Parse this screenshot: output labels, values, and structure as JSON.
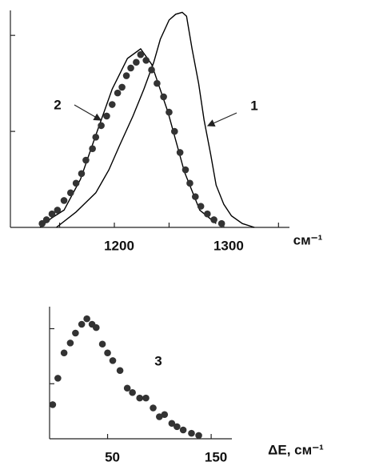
{
  "chart_data": [
    {
      "type": "line",
      "annotations": [
        "1",
        "2"
      ],
      "xlabel": "см⁻¹",
      "xlim": [
        1105,
        1360
      ],
      "xticks": [
        1150,
        1200,
        1250,
        1300,
        1350
      ],
      "xtick_labels": [
        null,
        "1200",
        null,
        "1300",
        null
      ],
      "ylim": [
        0,
        1.13
      ],
      "yticks": [
        0.5,
        1
      ],
      "series": [
        {
          "color": "#000000",
          "marker": "none",
          "x": [
            1147,
            1165,
            1183,
            1195,
            1205,
            1217,
            1227,
            1236,
            1242,
            1250,
            1256,
            1262,
            1266,
            1271,
            1277,
            1282,
            1288,
            1293,
            1300,
            1307,
            1317,
            1328
          ],
          "values": [
            0,
            0.08,
            0.18,
            0.3,
            0.43,
            0.58,
            0.72,
            0.86,
            0.98,
            1.08,
            1.11,
            1.12,
            1.1,
            0.93,
            0.75,
            0.56,
            0.38,
            0.22,
            0.12,
            0.06,
            0.02,
            0
          ]
        },
        {
          "color": "#000000",
          "marker": "none",
          "x": [
            1132,
            1143,
            1154,
            1169,
            1183,
            1198,
            1212,
            1224,
            1234,
            1249,
            1264,
            1278,
            1293
          ],
          "values": [
            0,
            0.05,
            0.09,
            0.25,
            0.48,
            0.72,
            0.88,
            0.93,
            0.85,
            0.6,
            0.29,
            0.09,
            0.02
          ]
        },
        {
          "color": "#333333",
          "marker": "dot",
          "x": [
            1134,
            1138,
            1143,
            1148,
            1154,
            1160,
            1165,
            1170,
            1174,
            1180,
            1183,
            1188,
            1193,
            1198,
            1203,
            1207,
            1211,
            1215,
            1220,
            1224,
            1229,
            1234,
            1239,
            1245,
            1250,
            1255,
            1260,
            1265,
            1269,
            1274,
            1279,
            1285,
            1291,
            1298
          ],
          "values": [
            0.02,
            0.04,
            0.07,
            0.09,
            0.14,
            0.18,
            0.23,
            0.28,
            0.35,
            0.41,
            0.47,
            0.53,
            0.58,
            0.64,
            0.7,
            0.73,
            0.79,
            0.83,
            0.86,
            0.9,
            0.87,
            0.82,
            0.75,
            0.68,
            0.6,
            0.5,
            0.39,
            0.3,
            0.23,
            0.16,
            0.11,
            0.07,
            0.04,
            0.02
          ]
        }
      ]
    },
    {
      "type": "scatter",
      "annotations": [
        "3"
      ],
      "xlabel": "ΔE, см⁻¹",
      "xlim": [
        -6,
        170
      ],
      "xticks": [
        50,
        150
      ],
      "ylim": [
        0,
        1.2
      ],
      "yticks": [
        0.5,
        1
      ],
      "color": "#333333",
      "x": [
        -3,
        2,
        8,
        14,
        19,
        25,
        30,
        35,
        39,
        45,
        50,
        55,
        62,
        69,
        74,
        81,
        87,
        94,
        100,
        105,
        112,
        117,
        123,
        131,
        138
      ],
      "values": [
        0.31,
        0.55,
        0.78,
        0.87,
        0.96,
        1.04,
        1.09,
        1.04,
        1.01,
        0.86,
        0.78,
        0.71,
        0.62,
        0.46,
        0.42,
        0.37,
        0.37,
        0.28,
        0.2,
        0.22,
        0.14,
        0.11,
        0.08,
        0.05,
        0.03
      ]
    }
  ]
}
